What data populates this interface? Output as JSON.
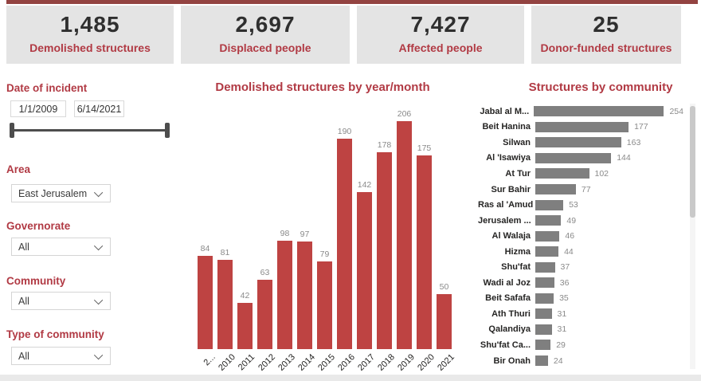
{
  "theme": {
    "top_strip_color": "#934341",
    "accent_red_text": "#b13a44",
    "bar_red": "#be4342",
    "bar_gray": "#7f7f7f",
    "card_background": "#e4e4e4"
  },
  "kpis": [
    {
      "value": "1,485",
      "label": "Demolished structures"
    },
    {
      "value": "2,697",
      "label": "Displaced people"
    },
    {
      "value": "7,427",
      "label": "Affected people"
    },
    {
      "value": "25",
      "label": "Donor-funded structures"
    }
  ],
  "filters": {
    "date": {
      "label": "Date of incident",
      "start": "1/1/2009",
      "end": "6/14/2021"
    },
    "area": {
      "label": "Area",
      "value": "East Jerusalem"
    },
    "governorate": {
      "label": "Governorate",
      "value": "All"
    },
    "community": {
      "label": "Community",
      "value": "All"
    },
    "type_of_community": {
      "label": "Type of community",
      "value": "All"
    }
  },
  "chart_data": [
    {
      "type": "bar",
      "orientation": "vertical",
      "title": "Demolished structures by year/month",
      "categories": [
        "2...",
        "2010",
        "2011",
        "2012",
        "2013",
        "2014",
        "2015",
        "2016",
        "2017",
        "2018",
        "2019",
        "2020",
        "2021"
      ],
      "values": [
        84,
        81,
        42,
        63,
        98,
        97,
        79,
        190,
        142,
        178,
        206,
        175,
        50
      ],
      "ylim": [
        0,
        206
      ],
      "grid": false,
      "legend": false,
      "value_labels": true
    },
    {
      "type": "bar",
      "orientation": "horizontal",
      "title": "Structures by community",
      "categories": [
        "Jabal al M...",
        "Beit Hanina",
        "Silwan",
        "Al 'Isawiya",
        "At Tur",
        "Sur Bahir",
        "Ras al 'Amud",
        "Jerusalem ...",
        "Al Walaja",
        "Hizma",
        "Shu'fat",
        "Wadi al Joz",
        "Beit Safafa",
        "Ath Thuri",
        "Qalandiya",
        "Shu'fat Ca...",
        "Bir Onah"
      ],
      "values": [
        254,
        177,
        163,
        144,
        102,
        77,
        53,
        49,
        46,
        44,
        37,
        36,
        35,
        31,
        31,
        29,
        24
      ],
      "xlim": [
        0,
        254
      ],
      "grid": false,
      "legend": false,
      "value_labels": true,
      "scrollable": true
    }
  ]
}
